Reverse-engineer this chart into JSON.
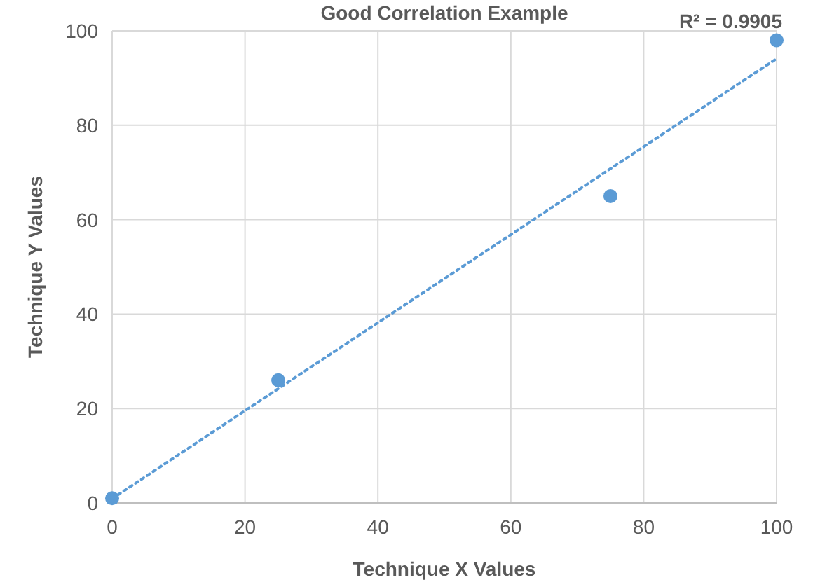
{
  "chart_data": {
    "type": "scatter",
    "title": "Good Correlation Example",
    "xlabel": "Technique X Values",
    "ylabel": "Technique Y Values",
    "annotations": [
      "R² = 0.9905"
    ],
    "x": [
      0,
      25,
      75,
      100
    ],
    "series": [
      {
        "color": "#5b9bd5",
        "values": [
          1,
          26,
          65,
          98
        ],
        "marker": "circle"
      },
      {
        "type": "line",
        "color": "#5b9bd5",
        "x": [
          0,
          100
        ],
        "values": [
          0.9,
          94.1
        ],
        "line_style": "dotted",
        "marker": "none"
      }
    ],
    "xlim": [
      0,
      100
    ],
    "ylim": [
      0,
      100
    ],
    "xticks": [
      0,
      20,
      40,
      60,
      80,
      100
    ],
    "yticks": [
      0,
      20,
      40,
      60,
      80,
      100
    ],
    "grid": true
  }
}
